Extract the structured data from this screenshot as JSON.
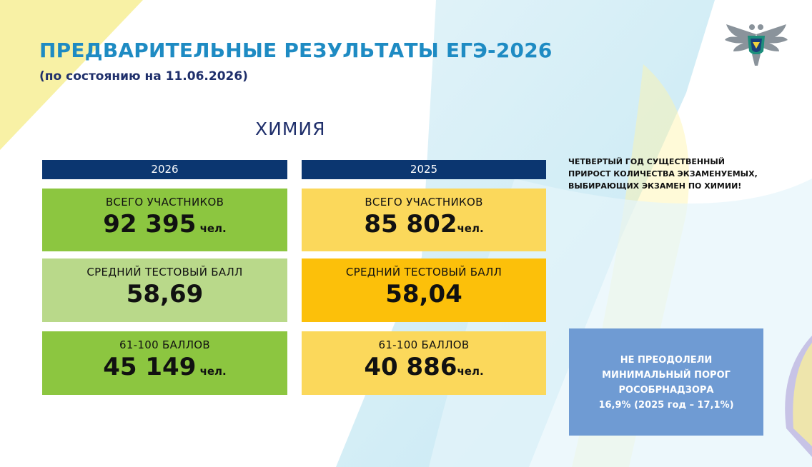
{
  "slide": {
    "title": "ПРЕДВАРИТЕЛЬНЫЕ РЕЗУЛЬТАТЫ ЕГЭ-2026",
    "subtitle": "(по состоянию на 11.06.2026)",
    "subject": "ХИМИЯ"
  },
  "columns": [
    {
      "year": "2026",
      "participants": {
        "label": "ВСЕГО УЧАСТНИКОВ",
        "value": "92 395",
        "unit": " чел."
      },
      "avg_score": {
        "label": "СРЕДНИЙ ТЕСТОВЫЙ БАЛЛ",
        "value": "58,69"
      },
      "high_score": {
        "label": "61-100 БАЛЛОВ",
        "value": "45 149",
        "unit": " чел."
      }
    },
    {
      "year": "2025",
      "participants": {
        "label": "ВСЕГО УЧАСТНИКОВ",
        "value": "85 802",
        "unit": "чел."
      },
      "avg_score": {
        "label": "СРЕДНИЙ ТЕСТОВЫЙ БАЛЛ",
        "value": "58,04"
      },
      "high_score": {
        "label": "61-100 БАЛЛОВ",
        "value": "40 886",
        "unit": "чел."
      }
    }
  ],
  "note": {
    "lines": [
      "ЧЕТВЕРТЫЙ ГОД СУЩЕСТВЕННЫЙ",
      "ПРИРОСТ КОЛИЧЕСТВА ЭКЗАМЕНУЕМЫХ,",
      "ВЫБИРАЮЩИХ ЭКЗАМЕН ПО ХИМИИ!"
    ]
  },
  "threshold_box": {
    "lines": [
      "НЕ ПРЕОДОЛЕЛИ",
      "МИНИМАЛЬНЫЙ ПОРОГ",
      "РОСОБРНАДЗОРА",
      "16,9% (2025 год – 17,1%)"
    ]
  },
  "colors": {
    "title": "#1e8bc3",
    "year_bar": "#0b3670",
    "green_dark": "#8cc640",
    "green_light": "#b9d98a",
    "yellow_light": "#fbd85b",
    "yellow_dark": "#fcc00a",
    "threshold_box": "#6f9bd3"
  },
  "icons": {
    "logo": "rosobrnadzor-eagle-emblem"
  }
}
